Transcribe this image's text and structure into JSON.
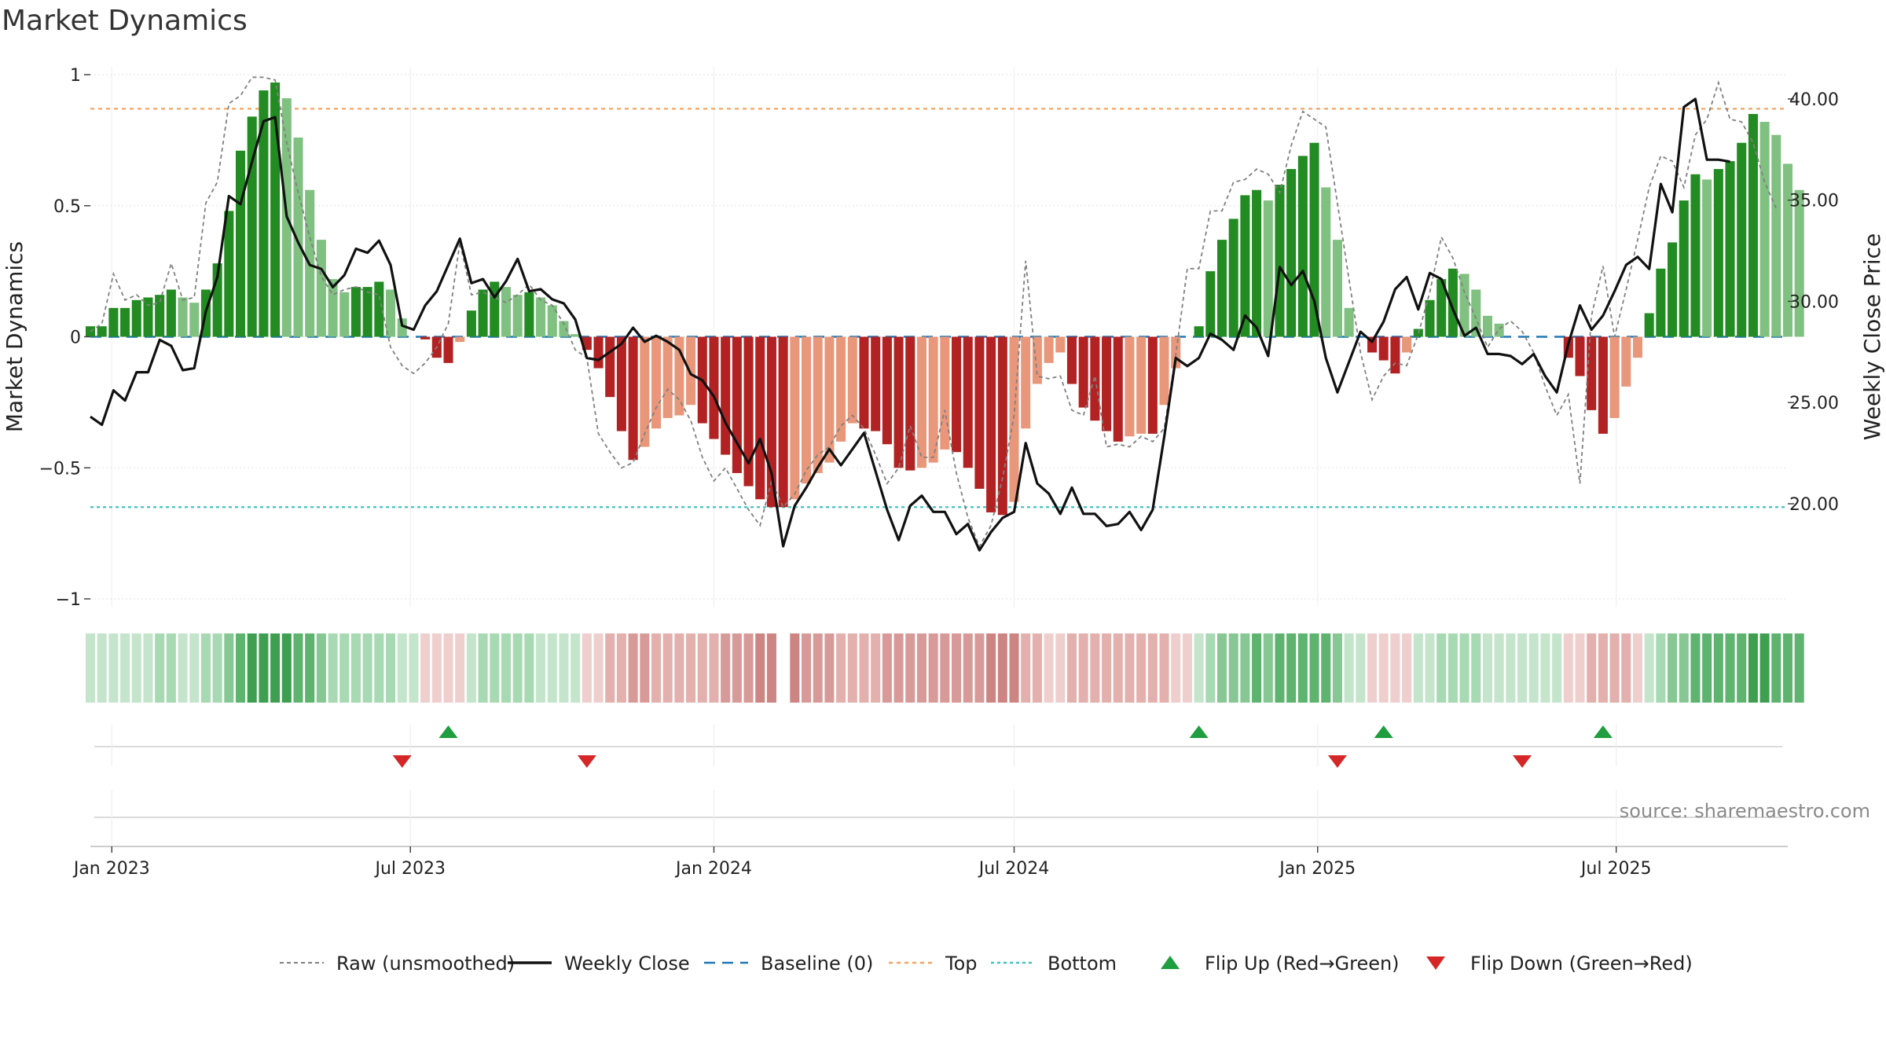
{
  "title": "Market Dynamics",
  "source_note": "source: sharemaestro.com",
  "chart_data": {
    "type": "bar",
    "title": "Market Dynamics",
    "ylabel_left": "Market Dynamics",
    "ylabel_right": "Weekly Close Price",
    "ylim_left": [
      -1,
      1
    ],
    "ylim_right": [
      15.3,
      41.2
    ],
    "y_ticks_left": [
      {
        "value": 1,
        "label": "1"
      },
      {
        "value": 0.5,
        "label": "0.5"
      },
      {
        "value": 0,
        "label": "0"
      },
      {
        "value": -0.5,
        "label": "−0.5"
      },
      {
        "value": -1,
        "label": "−1"
      }
    ],
    "y_ticks_right": [
      {
        "value": 40,
        "label": "40.00"
      },
      {
        "value": 35,
        "label": "35.00"
      },
      {
        "value": 30,
        "label": "30.00"
      },
      {
        "value": 25,
        "label": "25.00"
      },
      {
        "value": 20,
        "label": "20.00"
      }
    ],
    "x_ticks": [
      {
        "date": "2023-01-01",
        "label": "Jan 2023"
      },
      {
        "date": "2023-07-01",
        "label": "Jul 2023"
      },
      {
        "date": "2024-01-01",
        "label": "Jan 2024"
      },
      {
        "date": "2024-07-01",
        "label": "Jul 2024"
      },
      {
        "date": "2025-01-01",
        "label": "Jan 2025"
      },
      {
        "date": "2025-07-01",
        "label": "Jul 2025"
      }
    ],
    "x_range": [
      "2022-12-19",
      "2025-10-13"
    ],
    "first_week": "2022-12-19",
    "momentum": [
      0.04,
      0.04,
      0.11,
      0.11,
      0.14,
      0.15,
      0.16,
      0.18,
      0.15,
      0.13,
      0.18,
      0.28,
      0.48,
      0.71,
      0.84,
      0.94,
      0.97,
      0.91,
      0.76,
      0.56,
      0.37,
      0.22,
      0.17,
      0.19,
      0.19,
      0.21,
      0.18,
      0.07,
      0,
      -0.01,
      -0.08,
      -0.1,
      -0.02,
      0.1,
      0.18,
      0.21,
      0.19,
      0.16,
      0.17,
      0.15,
      0.12,
      0.06,
      0.01,
      -0.05,
      -0.12,
      -0.23,
      -0.36,
      -0.47,
      -0.42,
      -0.35,
      -0.31,
      -0.3,
      -0.26,
      -0.33,
      -0.39,
      -0.45,
      -0.52,
      -0.57,
      -0.62,
      -0.65,
      -0.65,
      -0.62,
      -0.56,
      -0.52,
      -0.48,
      -0.4,
      -0.33,
      -0.35,
      -0.36,
      -0.41,
      -0.5,
      -0.51,
      -0.5,
      -0.48,
      -0.43,
      -0.44,
      -0.5,
      -0.58,
      -0.67,
      -0.68,
      -0.63,
      -0.35,
      -0.18,
      -0.1,
      -0.06,
      -0.18,
      -0.27,
      -0.32,
      -0.36,
      -0.4,
      -0.38,
      -0.37,
      -0.37,
      -0.26,
      -0.12,
      0,
      0.04,
      0.25,
      0.37,
      0.45,
      0.54,
      0.56,
      0.52,
      0.58,
      0.64,
      0.69,
      0.74,
      0.57,
      0.37,
      0.11,
      0,
      -0.06,
      -0.09,
      -0.14,
      -0.06,
      0.03,
      0.14,
      0.22,
      0.26,
      0.24,
      0.18,
      0.08,
      0.05,
      0,
      0,
      0,
      0,
      0,
      -0.08,
      -0.15,
      -0.28,
      -0.37,
      -0.31,
      -0.19,
      -0.08,
      0.09,
      0.26,
      0.36,
      0.52,
      0.62,
      0.6,
      0.64,
      0.67,
      0.74,
      0.85,
      0.82,
      0.77,
      0.66,
      0.56
    ],
    "raw": [
      0.02,
      0.05,
      0.24,
      0.14,
      0.16,
      0.12,
      0.13,
      0.28,
      0.14,
      0.15,
      0.51,
      0.59,
      0.89,
      0.92,
      0.99,
      0.99,
      0.98,
      0.74,
      0.55,
      0.38,
      0.23,
      0.16,
      0.18,
      0.19,
      0.17,
      0.16,
      -0.04,
      -0.11,
      -0.14,
      -0.1,
      -0.04,
      0.05,
      0.36,
      0.16,
      0.17,
      0.15,
      0.13,
      0.16,
      0.2,
      0.14,
      0.12,
      0.05,
      -0.05,
      -0.08,
      -0.37,
      -0.44,
      -0.5,
      -0.48,
      -0.37,
      -0.27,
      -0.2,
      -0.24,
      -0.32,
      -0.46,
      -0.55,
      -0.5,
      -0.58,
      -0.66,
      -0.72,
      -0.55,
      -0.65,
      -0.6,
      -0.51,
      -0.45,
      -0.42,
      -0.34,
      -0.3,
      -0.35,
      -0.45,
      -0.56,
      -0.5,
      -0.34,
      -0.46,
      -0.46,
      -0.28,
      -0.52,
      -0.69,
      -0.8,
      -0.72,
      -0.54,
      -0.3,
      0.29,
      -0.15,
      -0.16,
      -0.15,
      -0.28,
      -0.3,
      -0.15,
      -0.42,
      -0.41,
      -0.42,
      -0.38,
      -0.4,
      -0.35,
      -0.07,
      0.26,
      0.26,
      0.48,
      0.48,
      0.59,
      0.6,
      0.64,
      0.62,
      0.55,
      0.73,
      0.86,
      0.83,
      0.8,
      0.51,
      0.22,
      -0.06,
      -0.24,
      -0.15,
      -0.1,
      -0.11,
      0.01,
      0.17,
      0.38,
      0.3,
      0.17,
      0.07,
      -0.04,
      0.03,
      0.06,
      0.02,
      -0.06,
      -0.19,
      -0.3,
      -0.22,
      -0.56,
      0.08,
      0.27,
      0.0,
      0.18,
      0.37,
      0.57,
      0.69,
      0.67,
      0.57,
      0.77,
      0.83,
      0.97,
      0.83,
      0.82,
      0.74,
      0.59,
      0.49
    ],
    "weekly_close": [
      24.3,
      23.9,
      25.6,
      25.1,
      26.5,
      26.5,
      28.1,
      27.8,
      26.6,
      26.7,
      29.5,
      31.2,
      35.2,
      34.8,
      36.9,
      38.9,
      39.1,
      34.2,
      32.9,
      31.8,
      31.6,
      30.7,
      31.3,
      32.6,
      32.4,
      33.0,
      31.8,
      28.8,
      28.6,
      29.8,
      30.5,
      31.8,
      33.1,
      30.9,
      31.1,
      30.2,
      31.0,
      32.1,
      30.5,
      30.6,
      30.1,
      29.9,
      29.1,
      27.2,
      27.1,
      27.5,
      27.9,
      28.7,
      28.0,
      28.3,
      28.0,
      27.6,
      26.4,
      26.1,
      25.3,
      24.0,
      23.0,
      22.0,
      23.2,
      21.5,
      17.9,
      19.9,
      20.8,
      21.8,
      22.7,
      21.9,
      22.7,
      23.5,
      21.6,
      19.7,
      18.2,
      19.9,
      20.4,
      19.6,
      19.6,
      18.5,
      19.0,
      17.7,
      18.6,
      19.3,
      19.6,
      23.0,
      21.0,
      20.5,
      19.5,
      20.8,
      19.5,
      19.5,
      18.9,
      19.0,
      19.6,
      18.7,
      19.7,
      23.3,
      27.2,
      26.8,
      27.2,
      28.4,
      28.1,
      27.6,
      29.3,
      28.7,
      27.3,
      31.7,
      30.8,
      31.5,
      30.0,
      27.2,
      25.5,
      27.0,
      28.5,
      28.0,
      29.0,
      30.6,
      31.2,
      29.6,
      31.4,
      31.1,
      29.6,
      28.3,
      28.7,
      27.4,
      27.4,
      27.3,
      26.9,
      27.4,
      26.3,
      25.5,
      27.9,
      29.8,
      28.6,
      29.3,
      30.5,
      31.8,
      32.2,
      31.6,
      35.8,
      34.4,
      39.6,
      40.0,
      37.0,
      37.0,
      36.9
    ]
  },
  "regime_strip": {
    "palette": {
      "green_1": "#c4e5cb",
      "green_2": "#a7d9b2",
      "green_3": "#86c794",
      "green_4": "#5eb36f",
      "green_5": "#3f9f51",
      "red_1": "#efcfce",
      "red_2": "#e3b0ae",
      "red_3": "#d89a98",
      "red_4": "#cc8582"
    }
  },
  "signals": {
    "flip_up_dates": [
      "2023-07-24",
      "2024-10-21",
      "2025-02-10",
      "2025-06-23"
    ],
    "flip_down_dates": [
      "2023-06-26",
      "2023-10-16",
      "2025-01-13",
      "2025-05-05"
    ]
  },
  "colors": {
    "bar_up_strong": "#228b22",
    "bar_up_weak": "#80c080",
    "bar_down_strong": "#b22222",
    "bar_down_weak": "#e8977a",
    "weekly_close": "#111111",
    "raw_line": "#808080",
    "baseline": "#1f77b4",
    "top_line": "#f4a460",
    "bottom_line": "#40c4c0",
    "flip_up": "#1e9e3e",
    "flip_down": "#d62728",
    "grid": "#e6e6e6"
  },
  "levels": {
    "top": 0.87,
    "bottom": -0.65,
    "baseline": 0
  },
  "legend": [
    {
      "key": "raw",
      "label": "Raw (unsmoothed)"
    },
    {
      "key": "close",
      "label": "Weekly Close"
    },
    {
      "key": "baseline",
      "label": "Baseline (0)"
    },
    {
      "key": "top",
      "label": "Top"
    },
    {
      "key": "bottom",
      "label": "Bottom"
    },
    {
      "key": "flip_up",
      "label": "Flip Up (Red→Green)"
    },
    {
      "key": "flip_down",
      "label": "Flip Down (Green→Red)"
    }
  ]
}
